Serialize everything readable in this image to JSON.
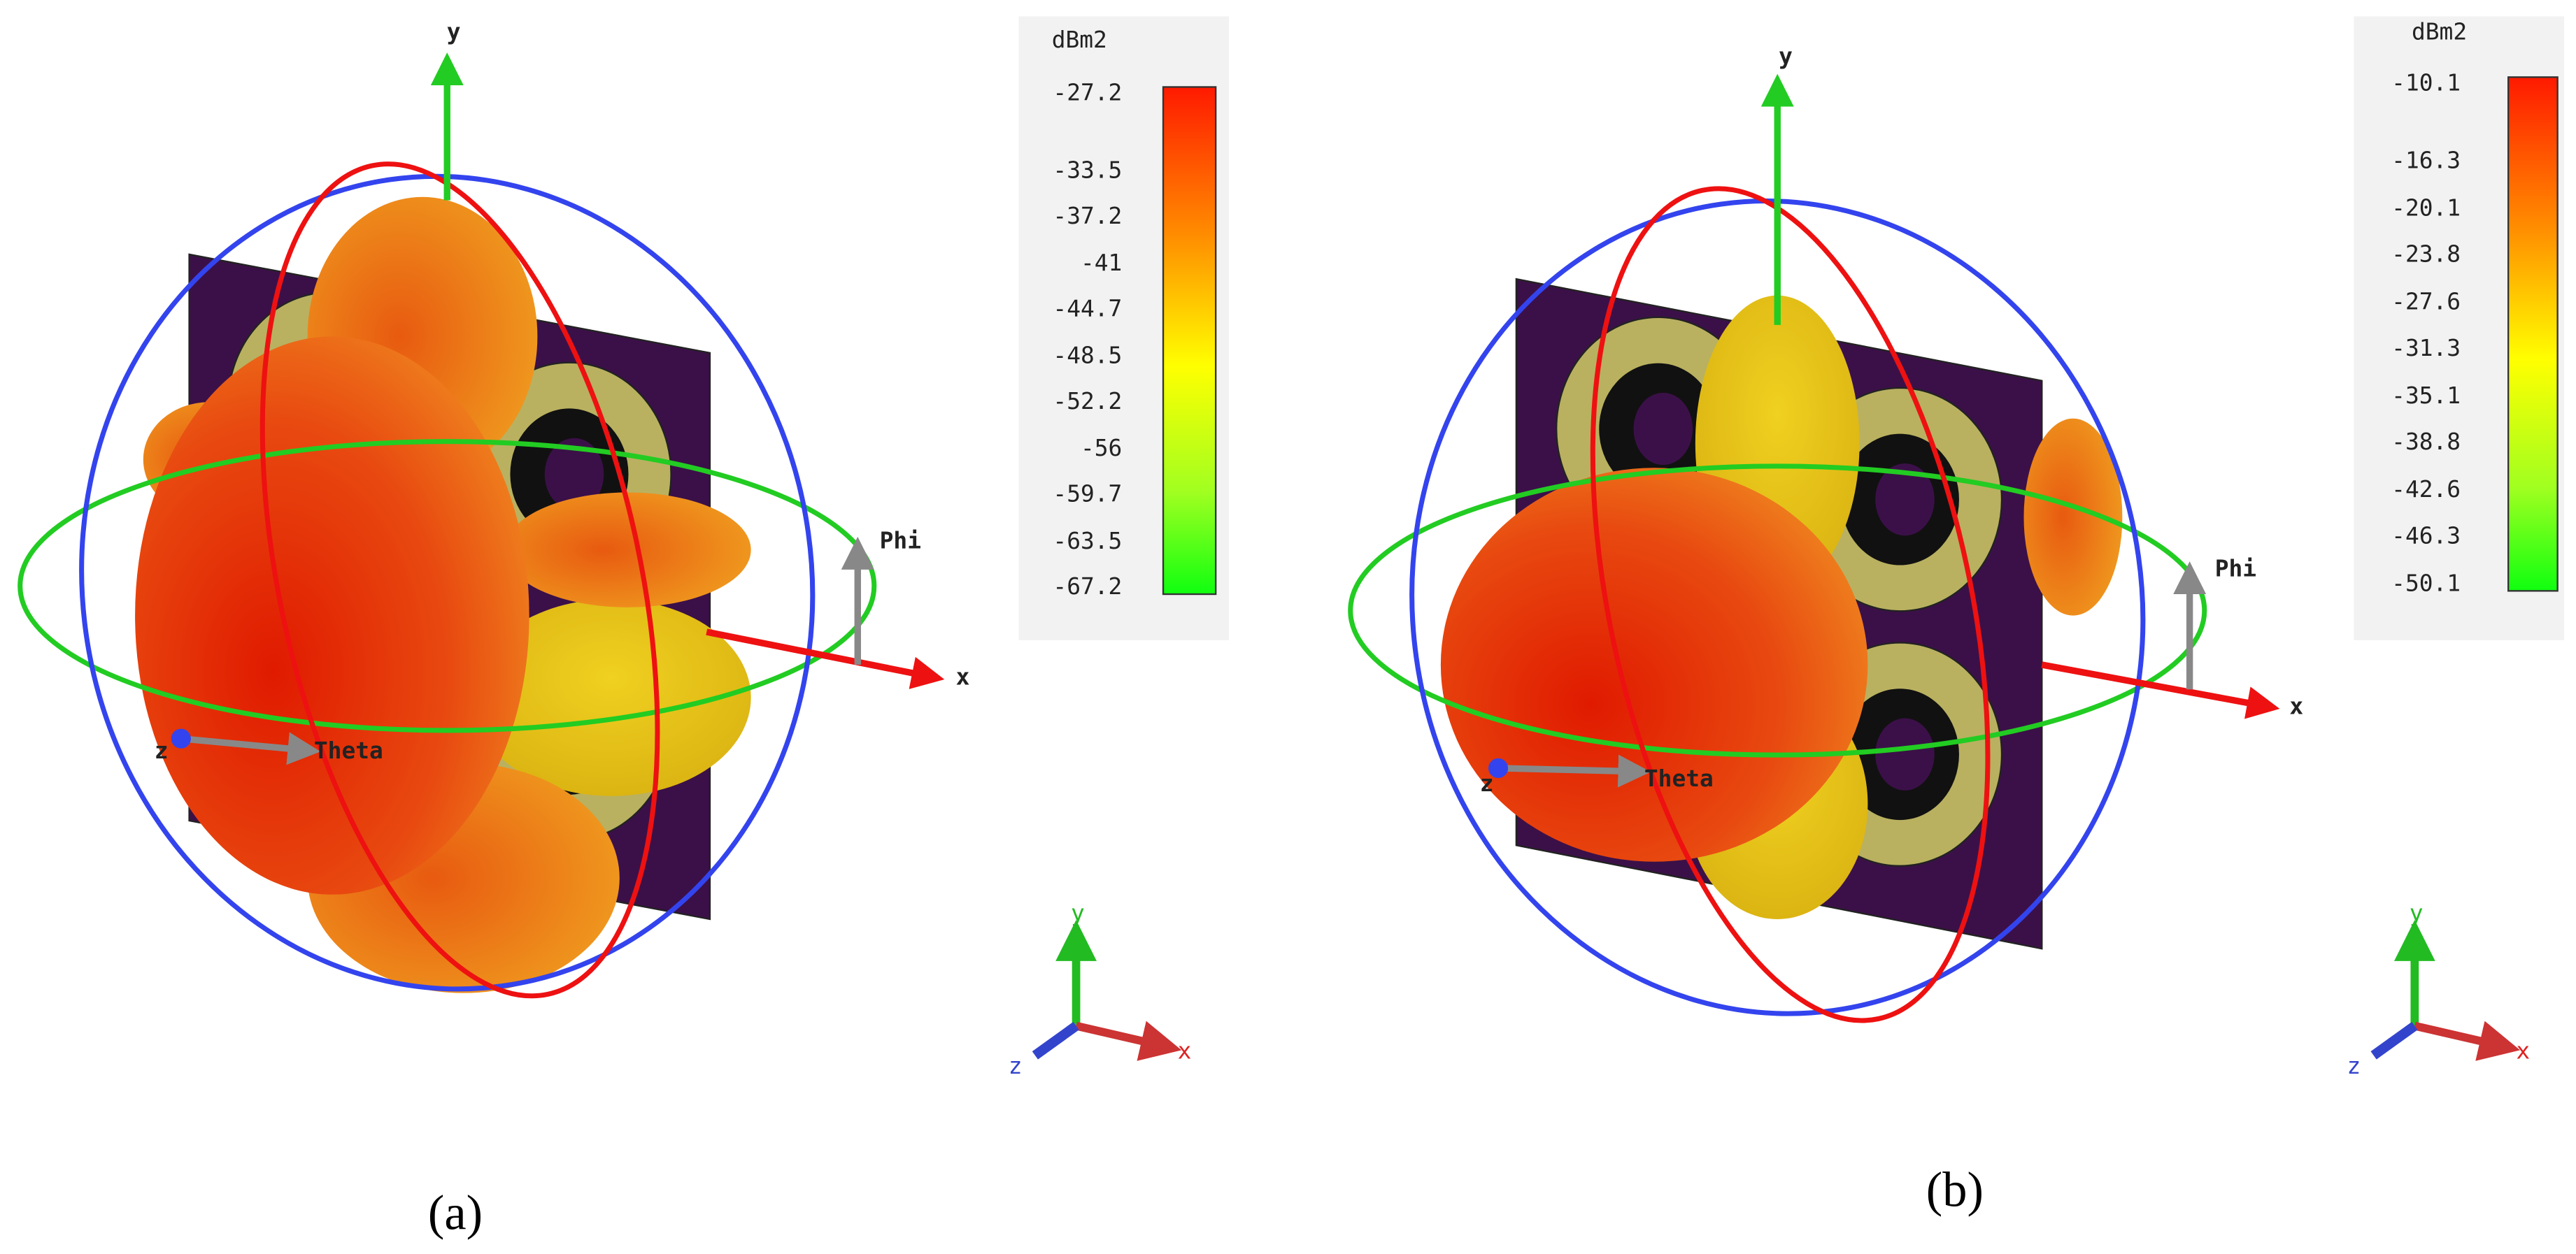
{
  "panels": [
    {
      "caption": "(a)",
      "colorbar": {
        "unit": "dBm2",
        "ticks": [
          -27.2,
          -33.5,
          -37.2,
          -41,
          -44.7,
          -48.5,
          -52.2,
          -56,
          -59.7,
          -63.5,
          -67.2
        ]
      },
      "axes": {
        "y": "y",
        "x": "x",
        "z": "z",
        "theta": "Theta",
        "phi": "Phi"
      },
      "triad": {
        "y": "y",
        "x": "x",
        "z": "z"
      }
    },
    {
      "caption": "(b)",
      "colorbar": {
        "unit": "dBm2",
        "ticks": [
          -10.1,
          -16.3,
          -20.1,
          -23.8,
          -27.6,
          -31.3,
          -35.1,
          -38.8,
          -42.6,
          -46.3,
          -50.1
        ]
      },
      "axes": {
        "y": "y",
        "x": "x",
        "z": "z",
        "theta": "Theta",
        "phi": "Phi"
      },
      "triad": {
        "y": "y",
        "x": "x",
        "z": "z"
      }
    }
  ]
}
